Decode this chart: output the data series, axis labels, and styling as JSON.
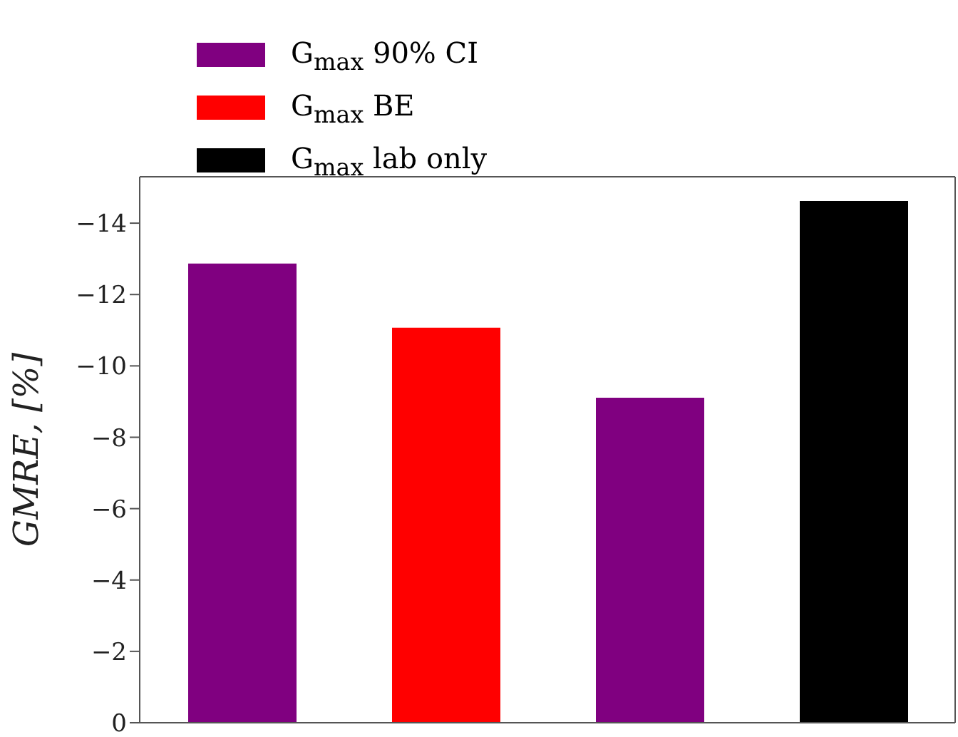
{
  "chart_data": {
    "type": "bar",
    "ylabel": "GMRE, [%]",
    "categories": [
      null,
      null,
      null,
      null
    ],
    "stacked": true,
    "series": [
      {
        "name": "G$_{max}$ 90% CI",
        "color": "#800080",
        "values": [
          -12.87,
          null,
          -9.11,
          null
        ]
      },
      {
        "name": "G$_{max}$ BE",
        "color": "#ff0000",
        "values": [
          null,
          -11.07,
          null,
          null
        ]
      },
      {
        "name": "G$_{max}$ lab only",
        "color": "#000000",
        "values": [
          null,
          null,
          null,
          -14.62
        ]
      }
    ],
    "ylim": [
      0,
      -15.3
    ],
    "yticks": [
      -14,
      -12,
      -10,
      -8,
      -6,
      -4,
      -2,
      0
    ],
    "legend": "top",
    "grid": false
  }
}
